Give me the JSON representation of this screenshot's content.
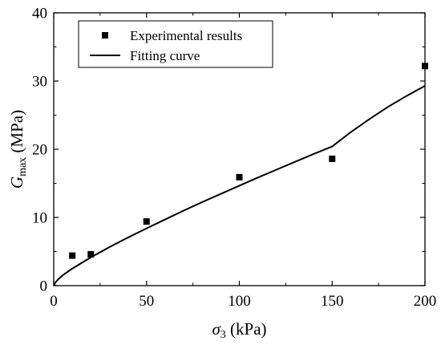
{
  "chart_data": {
    "type": "scatter",
    "title": "",
    "xlabel": {
      "symbol": "σ",
      "subscript": "3",
      "unit": " (kPa)"
    },
    "ylabel": {
      "symbol": "G",
      "subscript": "max",
      "unit": " (MPa)"
    },
    "xlim": [
      0,
      200
    ],
    "ylim": [
      0,
      40
    ],
    "xticks": [
      "0",
      "50",
      "100",
      "150",
      "200"
    ],
    "yticks": [
      "0",
      "10",
      "20",
      "30",
      "40"
    ],
    "grid": false,
    "legend_position": "top-left",
    "series": [
      {
        "name": "Experimental results",
        "kind": "points",
        "marker": "square",
        "color": "#000000",
        "x": [
          10,
          20,
          50,
          100,
          150,
          200
        ],
        "y": [
          4.4,
          4.6,
          9.4,
          15.9,
          18.6,
          32.2
        ]
      },
      {
        "name": "Fitting curve",
        "kind": "line",
        "color": "#000000",
        "x": [
          0,
          1,
          2.5,
          5,
          10,
          20,
          30,
          40,
          50,
          60,
          70,
          80,
          90,
          100,
          110,
          120,
          130,
          140,
          150,
          160,
          170,
          180,
          190,
          200
        ],
        "y": [
          0,
          0.5,
          0.95,
          1.55,
          2.5,
          4.15,
          5.65,
          7.05,
          8.4,
          9.7,
          11.0,
          12.25,
          13.45,
          14.65,
          15.85,
          17.0,
          18.15,
          19.3,
          20.4,
          22.5,
          24.4,
          26.2,
          27.8,
          29.3
        ]
      }
    ]
  }
}
